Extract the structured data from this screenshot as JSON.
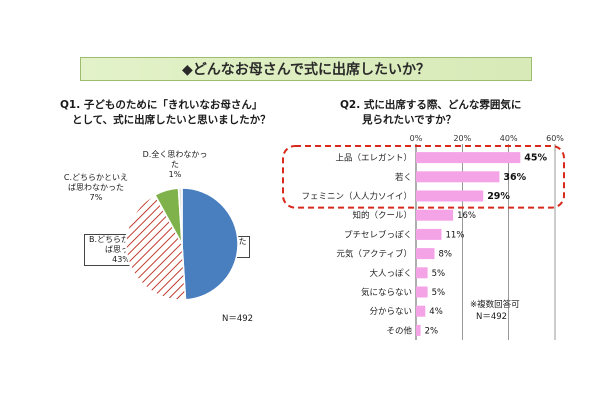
{
  "header": {
    "title": "◆どんなお母さんで式に出席したいか？"
  },
  "q1": {
    "line1": "Q1. 子どものために「きれいなお母さん」",
    "line2": "として、式に出席したいと思いましたか？",
    "n_label": "N＝492"
  },
  "q2": {
    "line1": "Q2. 式に出席する際、どんな雰囲気に",
    "line2": "見られたいですか？",
    "note": "※複数回答可",
    "n_label": "N＝492"
  },
  "colors": {
    "pie_a": "#4a7fbf",
    "pie_b_hatch": "#c0392b",
    "pie_c": "#7fb24a",
    "pie_d": "#e3e3e3",
    "bar": "#f4a3e6",
    "highlight": "#d9291c"
  },
  "chart_data": [
    {
      "type": "pie",
      "slices": [
        {
          "label_line1": "A.とても思った",
          "label_line2": "",
          "pct_label": "49%",
          "value": 49
        },
        {
          "label_line1": "B.どちらかといえ",
          "label_line2": "ば思った",
          "pct_label": "43%",
          "value": 43
        },
        {
          "label_line1": "C.どちらかといえ",
          "label_line2": "ば思わなかった",
          "pct_label": "7%",
          "value": 7
        },
        {
          "label_line1": "D.全く思わなかっ",
          "label_line2": "た",
          "pct_label": "1%",
          "value": 1
        }
      ]
    },
    {
      "type": "bar",
      "orientation": "horizontal",
      "categories": [
        "上品（エレガント）",
        "若く",
        "フェミニン（人人力ソイイ）",
        "知的（クール）",
        "プチセレブっぽく",
        "元気（アクティブ）",
        "大人っぽく",
        "気にならない",
        "分からない",
        "その他"
      ],
      "values": [
        45,
        36,
        29,
        16,
        11,
        8,
        5,
        5,
        4,
        2
      ],
      "value_labels": [
        "45%",
        "36%",
        "29%",
        "16%",
        "11%",
        "8%",
        "5%",
        "5%",
        "4%",
        "2%"
      ],
      "xlim": [
        0,
        60
      ],
      "x_ticks": [
        "0%",
        "20%",
        "40%",
        "60%"
      ],
      "highlighted_categories": 3
    }
  ]
}
